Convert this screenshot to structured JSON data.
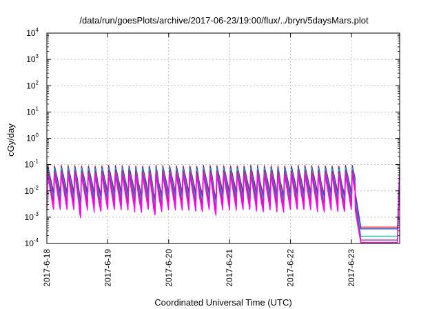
{
  "chart_data": {
    "type": "line",
    "title": "/data/run/goesPlots/archive/2017-06-23/19:00/flux/../bryn/5daysMars.plot",
    "xlabel": "Coordinated Universal Time (UTC)",
    "ylabel": "cGy/day",
    "yscale": "log",
    "ylim": [
      0.0001,
      10000
    ],
    "xlim": [
      "2017-06-18T00:00",
      "2017-06-23T19:00"
    ],
    "grid": true,
    "x_ticks": [
      "2017-6-18",
      "2017-6-19",
      "2017-6-20",
      "2017-6-21",
      "2017-6-22",
      "2017-6-23"
    ],
    "y_ticks": [
      {
        "base": "10",
        "exp": "-4"
      },
      {
        "base": "10",
        "exp": "-3"
      },
      {
        "base": "10",
        "exp": "-2"
      },
      {
        "base": "10",
        "exp": "-1"
      },
      {
        "base": "10",
        "exp": "0"
      },
      {
        "base": "10",
        "exp": "1"
      },
      {
        "base": "10",
        "exp": "2"
      },
      {
        "base": "10",
        "exp": "3"
      },
      {
        "base": "10",
        "exp": "4"
      }
    ],
    "oscillation": {
      "cycles_per_day": 9,
      "active_until": "2017-06-23T01:30",
      "recovery_from": "2017-06-23T18:10",
      "deep_dips_hours": [
        13,
        20,
        36,
        42,
        44,
        60,
        66,
        84,
        92,
        108,
        116
      ]
    },
    "series": [
      {
        "color": "#e41a1c",
        "peak": 0.095,
        "trough": 0.009,
        "quiet": 0.00042
      },
      {
        "color": "#3333ff",
        "peak": 0.085,
        "trough": 0.007,
        "quiet": 0.00036
      },
      {
        "color": "#00c0a0",
        "peak": 0.075,
        "trough": 0.005,
        "quiet": 0.00019
      },
      {
        "color": "#a020a0",
        "peak": 0.062,
        "trough": 0.0035,
        "quiet": 0.000135
      },
      {
        "color": "#e020a0",
        "peak": 0.05,
        "trough": 0.0025,
        "quiet": 0.00011
      },
      {
        "color": "#ff00ff",
        "peak": 0.04,
        "trough": 0.0018,
        "quiet": 0.0001
      }
    ]
  }
}
